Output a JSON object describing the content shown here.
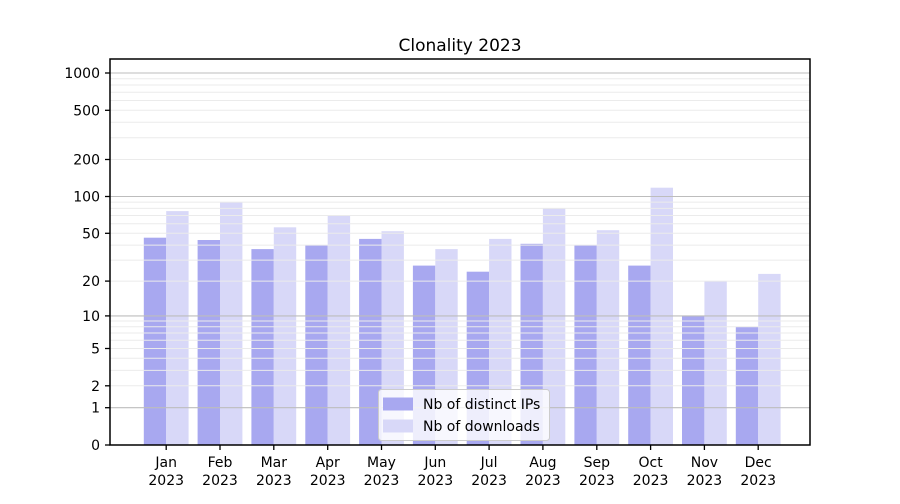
{
  "chart_data": {
    "type": "bar",
    "title": "Clonality 2023",
    "categories": [
      "Jan",
      "Feb",
      "Mar",
      "Apr",
      "May",
      "Jun",
      "Jul",
      "Aug",
      "Sep",
      "Oct",
      "Nov",
      "Dec"
    ],
    "year_label": "2023",
    "series": [
      {
        "name": "Nb of distinct IPs",
        "color": "#a8a8f0",
        "values": [
          46,
          44,
          37,
          40,
          45,
          27,
          24,
          41,
          40,
          27,
          10,
          8
        ]
      },
      {
        "name": "Nb of downloads",
        "color": "#d8d8f8",
        "values": [
          76,
          90,
          56,
          70,
          52,
          37,
          45,
          80,
          53,
          118,
          20,
          23
        ]
      }
    ],
    "y_axis": {
      "scale": "symlog",
      "ticks": [
        0,
        1,
        2,
        5,
        10,
        20,
        50,
        100,
        200,
        500,
        1000
      ],
      "ylim": [
        0,
        1300
      ]
    },
    "xlabel": "",
    "ylabel": "",
    "grid": "minor+major horizontal",
    "legend_position": "lower center",
    "colors": {
      "major_gridline": "#bdbdbd",
      "minor_gridline": "#ebebeb",
      "spine": "#000000",
      "legend_border": "#cccccc",
      "legend_background": "rgba(255,255,255,0.8)"
    }
  }
}
